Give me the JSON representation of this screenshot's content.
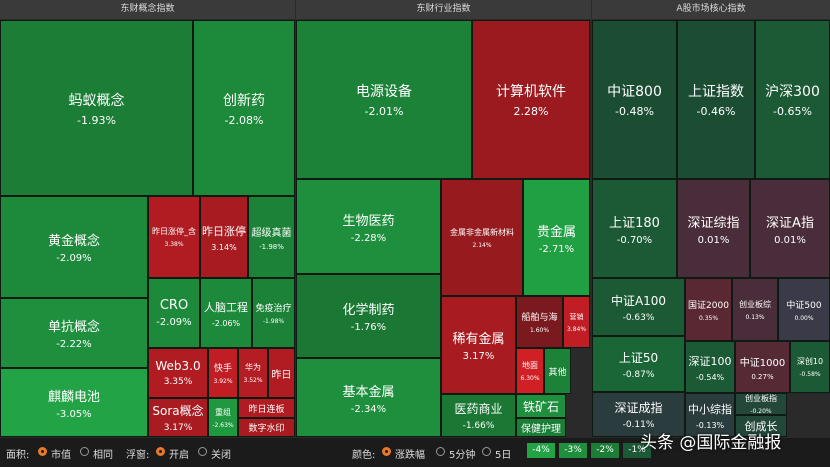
{
  "panels": [
    {
      "title": "东财概念指数",
      "tiles": [
        {
          "name": "蚂蚁概念",
          "change": "-1.93%",
          "color": "#1b7d36"
        },
        {
          "name": "创新药",
          "change": "-2.08%",
          "color": "#1c8a3a"
        },
        {
          "name": "黄金概念",
          "change": "-2.09%",
          "color": "#1c8a3a"
        },
        {
          "name": "单抗概念",
          "change": "-2.22%",
          "color": "#1e903d"
        },
        {
          "name": "麒麟电池",
          "change": "-3.05%",
          "color": "#22a446"
        },
        {
          "name": "昨日涨停_含",
          "change": "3.38%",
          "color": "#b01c22"
        },
        {
          "name": "昨日涨停",
          "change": "3.14%",
          "color": "#a81b20"
        },
        {
          "name": "超级真菌",
          "change": "-1.98%",
          "color": "#1b8238"
        },
        {
          "name": "CRO",
          "change": "-2.09%",
          "color": "#1c8a3a"
        },
        {
          "name": "人脑工程",
          "change": "-2.06%",
          "color": "#1c8a3a"
        },
        {
          "name": "免疫治疗",
          "change": "-1.98%",
          "color": "#1b8238"
        },
        {
          "name": "Web3.0",
          "change": "3.35%",
          "color": "#b01c22"
        },
        {
          "name": "快手",
          "change": "3.92%",
          "color": "#c01e24"
        },
        {
          "name": "华为",
          "change": "3.52%",
          "color": "#b41d23"
        },
        {
          "name": "昨日",
          "color": "#b01c22"
        },
        {
          "name": "Sora概念",
          "change": "3.17%",
          "color": "#a81b20"
        },
        {
          "name": "重组",
          "change": "-2.63%",
          "color": "#1f983f"
        },
        {
          "name": "昨日连板",
          "color": "#b01c22"
        },
        {
          "name": "数字水印",
          "color": "#a81b20"
        }
      ]
    },
    {
      "title": "东财行业指数",
      "tiles": [
        {
          "name": "电源设备",
          "change": "-2.01%",
          "color": "#1b8238"
        },
        {
          "name": "计算机软件",
          "change": "2.28%",
          "color": "#9a1a1f"
        },
        {
          "name": "生物医药",
          "change": "-2.28%",
          "color": "#1e903d"
        },
        {
          "name": "化学制药",
          "change": "-1.76%",
          "color": "#1a7834"
        },
        {
          "name": "基本金属",
          "change": "-2.34%",
          "color": "#1e903d"
        },
        {
          "name": "金属非金属新材料",
          "change": "2.14%",
          "color": "#961a1e"
        },
        {
          "name": "贵金属",
          "change": "-2.71%",
          "color": "#21a043"
        },
        {
          "name": "稀有金属",
          "change": "3.17%",
          "color": "#a81b20"
        },
        {
          "name": "船舶与海",
          "change": "1.60%",
          "color": "#7a1a1e"
        },
        {
          "name": "营销",
          "change": "3.84%",
          "color": "#c01e24"
        },
        {
          "name": "地面",
          "change": "6.30%",
          "color": "#d02026"
        },
        {
          "name": "其他",
          "color": "#1b8238"
        },
        {
          "name": "铁矿石",
          "color": "#1e903d"
        },
        {
          "name": "保健护理",
          "color": "#1b7d36"
        },
        {
          "name": "医药商业",
          "change": "-1.66%",
          "color": "#1a7834"
        }
      ]
    },
    {
      "title": "A股市场核心指数",
      "tiles": [
        {
          "name": "中证800",
          "change": "-0.48%",
          "color": "#1b4d33"
        },
        {
          "name": "上证指数",
          "change": "-0.46%",
          "color": "#1b4d33"
        },
        {
          "name": "沪深300",
          "change": "-0.65%",
          "color": "#1b5a35"
        },
        {
          "name": "上证180",
          "change": "-0.70%",
          "color": "#1b5a35"
        },
        {
          "name": "深证综指",
          "change": "0.01%",
          "color": "#4a2d3a"
        },
        {
          "name": "深证A指",
          "change": "0.01%",
          "color": "#4a2d3a"
        },
        {
          "name": "中证A100",
          "change": "-0.63%",
          "color": "#1b5a35"
        },
        {
          "name": "上证50",
          "change": "-0.87%",
          "color": "#1b6636"
        },
        {
          "name": "深证成指",
          "change": "-0.11%",
          "color": "#2b3c3f"
        },
        {
          "name": "国证2000",
          "change": "0.35%",
          "color": "#5a2832"
        },
        {
          "name": "创业板综",
          "change": "0.13%",
          "color": "#4a2d3a"
        },
        {
          "name": "中证500",
          "change": "0.00%",
          "color": "#3a3a48"
        },
        {
          "name": "深证100",
          "change": "-0.54%",
          "color": "#1b5a35"
        },
        {
          "name": "中证1000",
          "change": "0.27%",
          "color": "#552a34"
        },
        {
          "name": "深创10",
          "change": "-0.58%",
          "color": "#1b5a35"
        },
        {
          "name": "中小综指",
          "change": "-0.13%",
          "color": "#2b3c3f"
        },
        {
          "name": "创业板指",
          "change": "-0.20%",
          "color": "#23483a"
        },
        {
          "name": "创成长",
          "color": "#23483a"
        }
      ]
    }
  ],
  "toolbar": {
    "area_label": "面积:",
    "area_options": [
      "市值",
      "相同"
    ],
    "float_label": "浮窗:",
    "float_options": [
      "开启",
      "关闭"
    ],
    "color_label": "颜色:",
    "color_options": [
      "涨跌幅",
      "5分钟",
      "5日"
    ],
    "legend": [
      {
        "label": "-4%",
        "color": "#22a446"
      },
      {
        "label": "-3%",
        "color": "#1e903d"
      },
      {
        "label": "-2%",
        "color": "#1b7d36"
      },
      {
        "label": "-1%",
        "color": "#1b5a35"
      }
    ]
  },
  "watermark": {
    "logo": "头条",
    "text": "@国际金融报"
  }
}
